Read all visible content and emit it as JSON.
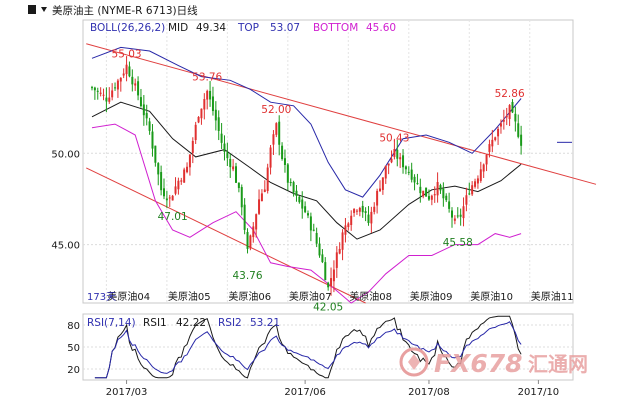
{
  "chart_data": {
    "type": "candlestick",
    "header": {
      "title": "美原油主 (NYME-R 6713)日线",
      "indicator_name": "BOLL(26,26,2)",
      "mid_label": "MID",
      "mid_value": "49.34",
      "top_label": "TOP",
      "top_value": "53.07",
      "bottom_label": "BOTTOM",
      "bottom_value": "45.60"
    },
    "price_axis": {
      "range": [
        41.8,
        57.3
      ],
      "ticks": [
        {
          "value": 50.0,
          "label": "50.00"
        },
        {
          "value": 45.0,
          "label": "45.00"
        }
      ]
    },
    "annotations": [
      {
        "label": "55.03",
        "value": 55.03,
        "color": "#e03030",
        "day": 12
      },
      {
        "label": "47.01",
        "value": 47.01,
        "color": "#208020",
        "day": 28
      },
      {
        "label": "53.76",
        "value": 53.76,
        "color": "#e03030",
        "day": 40
      },
      {
        "label": "43.76",
        "value": 43.76,
        "color": "#208020",
        "day": 54
      },
      {
        "label": "52.00",
        "value": 52.0,
        "color": "#e03030",
        "day": 64
      },
      {
        "label": "42.05",
        "value": 42.05,
        "color": "#208020",
        "day": 82
      },
      {
        "label": "50.43",
        "value": 50.43,
        "color": "#e03030",
        "day": 105
      },
      {
        "label": "45.58",
        "value": 45.58,
        "color": "#208020",
        "day": 127
      },
      {
        "label": "52.86",
        "value": 52.86,
        "color": "#e03030",
        "day": 145
      }
    ],
    "trendlines": [
      {
        "from": {
          "day": -2,
          "value": 56.0
        },
        "to": {
          "day": 175,
          "value": 48.3
        }
      },
      {
        "from": {
          "day": -2,
          "value": 49.2
        },
        "to": {
          "day": 95,
          "value": 41.8
        }
      }
    ],
    "contracts_label": "173天",
    "contracts": [
      {
        "label": "美原油04",
        "day": 5
      },
      {
        "label": "美原油05",
        "day": 26
      },
      {
        "label": "美原油06",
        "day": 47
      },
      {
        "label": "美原油07",
        "day": 68
      },
      {
        "label": "美原油08",
        "day": 89
      },
      {
        "label": "美原油09",
        "day": 110
      },
      {
        "label": "美原油10",
        "day": 131
      },
      {
        "label": "美原油11",
        "day": 152
      }
    ],
    "rsi_header": {
      "title": "RSI(7,14)",
      "rsi1_label": "RSI1",
      "rsi1_value": "42.22",
      "rsi2_label": "RSI2",
      "rsi2_value": "53.21"
    },
    "rsi_axis": {
      "range": [
        5,
        95
      ],
      "ticks": [
        {
          "value": 80,
          "label": "80"
        },
        {
          "value": 50,
          "label": "50"
        },
        {
          "value": 20,
          "label": "20"
        }
      ]
    },
    "time_axis": {
      "ticks": [
        {
          "label": "2017/03",
          "day": 12
        },
        {
          "label": "2017/06",
          "day": 74
        },
        {
          "label": "2017/08",
          "day": 117
        },
        {
          "label": "2017/10",
          "day": 155
        }
      ]
    },
    "last_close": 50.6,
    "anchors": [
      [
        0,
        53.6
      ],
      [
        5,
        53.0
      ],
      [
        10,
        54.2
      ],
      [
        12,
        54.8
      ],
      [
        16,
        53.2
      ],
      [
        20,
        51.2
      ],
      [
        24,
        48.0
      ],
      [
        27,
        47.5
      ],
      [
        30,
        48.5
      ],
      [
        33,
        49.2
      ],
      [
        37,
        52.2
      ],
      [
        40,
        53.4
      ],
      [
        43,
        51.8
      ],
      [
        46,
        50.0
      ],
      [
        49,
        49.2
      ],
      [
        52,
        47.2
      ],
      [
        54,
        44.6
      ],
      [
        56,
        46.0
      ],
      [
        58,
        47.5
      ],
      [
        60,
        48.2
      ],
      [
        62,
        50.2
      ],
      [
        64,
        51.5
      ],
      [
        66,
        49.8
      ],
      [
        68,
        48.5
      ],
      [
        71,
        47.5
      ],
      [
        74,
        46.8
      ],
      [
        77,
        45.6
      ],
      [
        80,
        44.0
      ],
      [
        82,
        42.6
      ],
      [
        84,
        43.8
      ],
      [
        87,
        45.6
      ],
      [
        90,
        46.8
      ],
      [
        93,
        47.2
      ],
      [
        96,
        46.2
      ],
      [
        99,
        47.8
      ],
      [
        102,
        49.2
      ],
      [
        105,
        50.0
      ],
      [
        108,
        49.4
      ],
      [
        111,
        48.8
      ],
      [
        114,
        48.0
      ],
      [
        117,
        47.6
      ],
      [
        120,
        48.2
      ],
      [
        123,
        47.2
      ],
      [
        126,
        46.2
      ],
      [
        128,
        46.6
      ],
      [
        131,
        48.0
      ],
      [
        134,
        48.8
      ],
      [
        137,
        50.0
      ],
      [
        140,
        51.0
      ],
      [
        143,
        51.8
      ],
      [
        145,
        52.4
      ],
      [
        147,
        51.6
      ],
      [
        149,
        50.6
      ]
    ],
    "boll_top": [
      [
        0,
        55.2
      ],
      [
        10,
        55.8
      ],
      [
        20,
        55.6
      ],
      [
        30,
        54.8
      ],
      [
        38,
        54.2
      ],
      [
        48,
        54.0
      ],
      [
        55,
        53.5
      ],
      [
        62,
        52.8
      ],
      [
        70,
        52.6
      ],
      [
        76,
        51.6
      ],
      [
        82,
        49.5
      ],
      [
        88,
        48.0
      ],
      [
        94,
        47.6
      ],
      [
        100,
        48.8
      ],
      [
        108,
        50.8
      ],
      [
        116,
        51.0
      ],
      [
        124,
        50.6
      ],
      [
        132,
        50.0
      ],
      [
        140,
        51.3
      ],
      [
        149,
        53.0
      ]
    ],
    "boll_mid": [
      [
        0,
        52.0
      ],
      [
        10,
        52.8
      ],
      [
        20,
        52.3
      ],
      [
        28,
        50.8
      ],
      [
        36,
        49.8
      ],
      [
        46,
        50.2
      ],
      [
        55,
        49.2
      ],
      [
        62,
        48.4
      ],
      [
        70,
        47.8
      ],
      [
        78,
        47.4
      ],
      [
        85,
        46.2
      ],
      [
        92,
        45.3
      ],
      [
        100,
        45.8
      ],
      [
        110,
        47.2
      ],
      [
        118,
        48.0
      ],
      [
        126,
        48.2
      ],
      [
        134,
        47.9
      ],
      [
        142,
        48.5
      ],
      [
        149,
        49.4
      ]
    ],
    "boll_bottom": [
      [
        0,
        51.4
      ],
      [
        8,
        51.6
      ],
      [
        15,
        51.0
      ],
      [
        22,
        47.4
      ],
      [
        28,
        45.8
      ],
      [
        34,
        45.4
      ],
      [
        42,
        46.2
      ],
      [
        50,
        46.8
      ],
      [
        56,
        45.8
      ],
      [
        62,
        44.0
      ],
      [
        68,
        43.8
      ],
      [
        76,
        43.6
      ],
      [
        84,
        42.6
      ],
      [
        90,
        41.8
      ],
      [
        96,
        42.4
      ],
      [
        102,
        43.4
      ],
      [
        110,
        44.4
      ],
      [
        118,
        44.4
      ],
      [
        126,
        45.0
      ],
      [
        134,
        45.0
      ],
      [
        140,
        45.6
      ],
      [
        145,
        45.4
      ],
      [
        149,
        45.6
      ]
    ],
    "watermark": {
      "prefix": "FX678",
      "suffix": "汇通网",
      "brand_color": "#e8a0a0"
    }
  }
}
